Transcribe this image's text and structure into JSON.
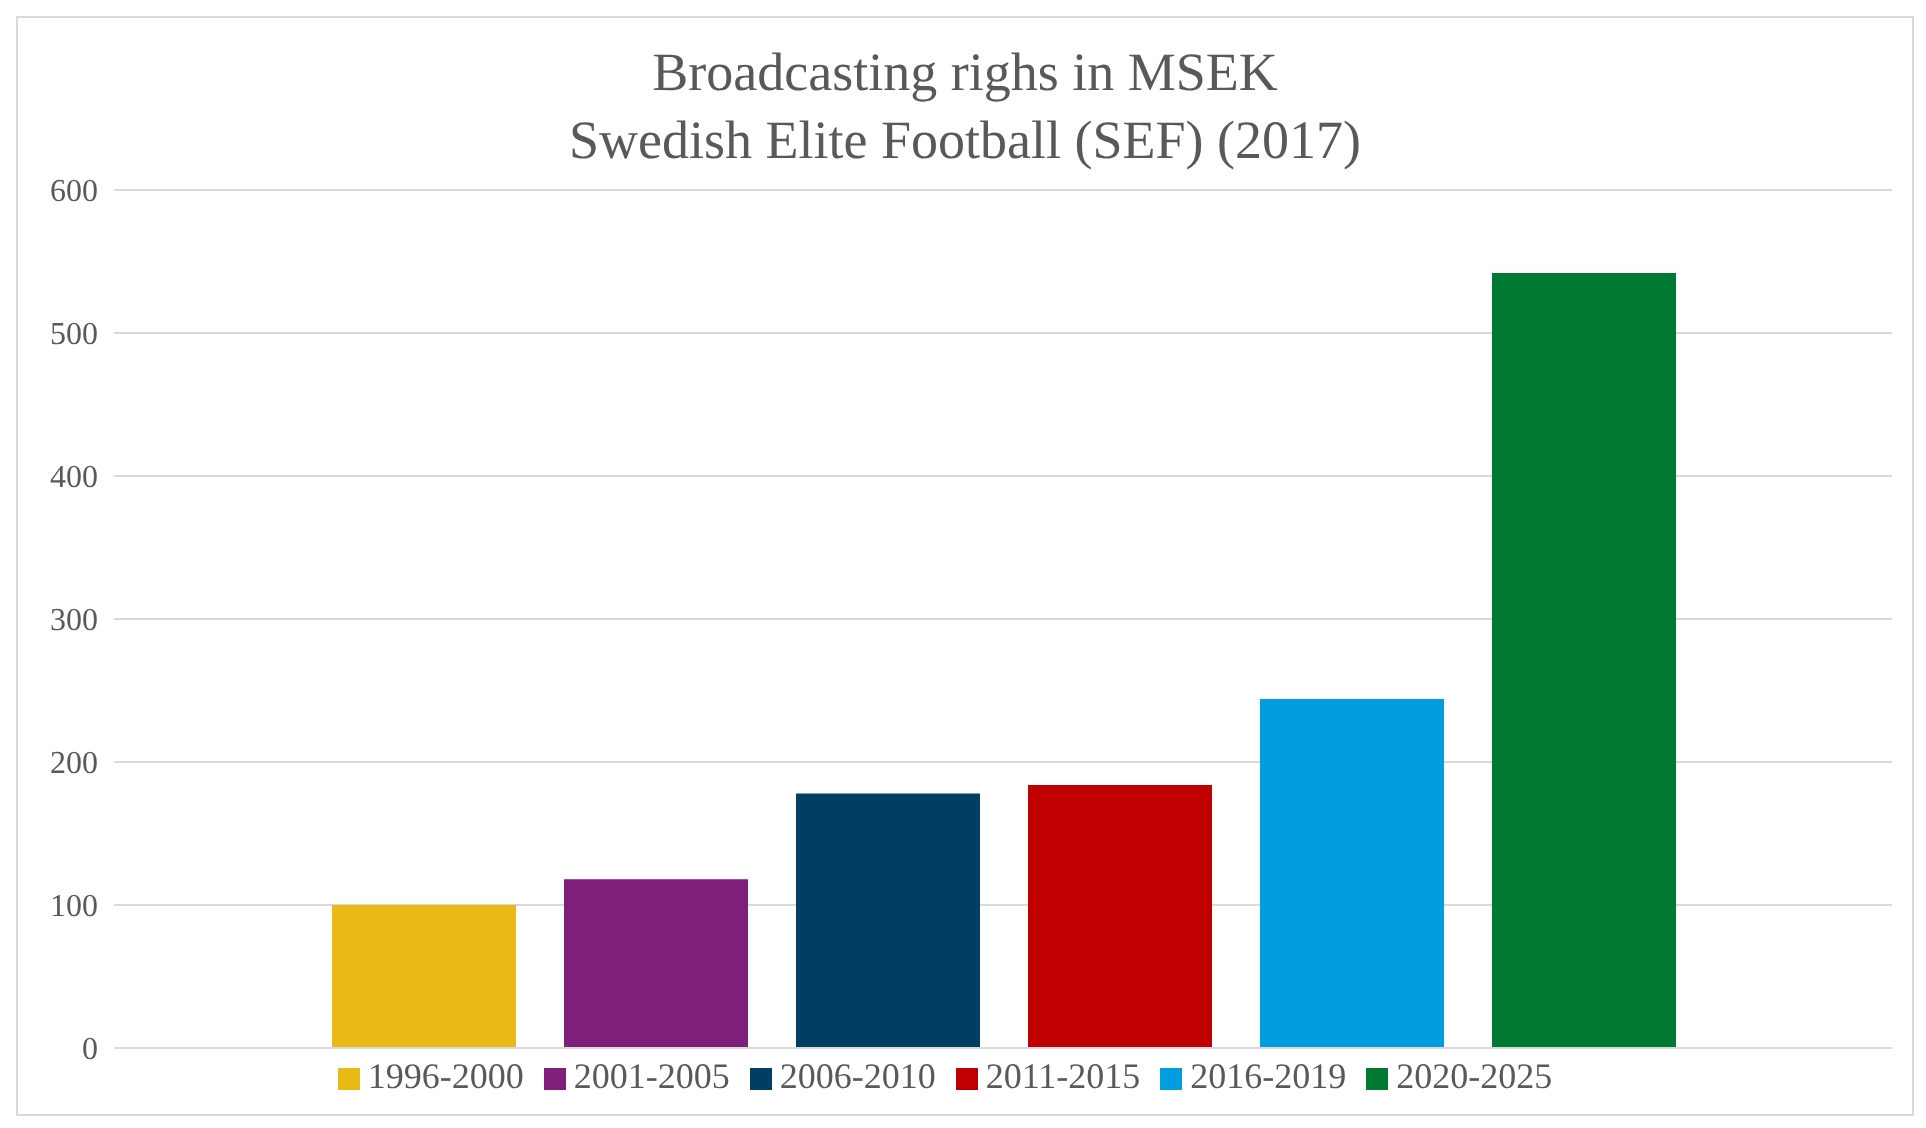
{
  "chart_data": {
    "type": "bar",
    "title": "Broadcasting righs in MSEK",
    "subtitle": "Swedish Elite Football (SEF) (2017)",
    "categories": [
      null
    ],
    "series": [
      {
        "name": "1996-2000",
        "color": "#ebb916",
        "values": [
          100
        ]
      },
      {
        "name": "2001-2005",
        "color": "#7f1f7c",
        "values": [
          118
        ]
      },
      {
        "name": "2006-2010",
        "color": "#003f63",
        "values": [
          178
        ]
      },
      {
        "name": "2011-2015",
        "color": "#c00000",
        "values": [
          184
        ]
      },
      {
        "name": "2016-2019",
        "color": "#009ddf",
        "values": [
          244
        ]
      },
      {
        "name": "2020-2025",
        "color": "#007a33",
        "values": [
          542
        ]
      }
    ],
    "ylim": [
      0,
      600
    ],
    "yticks": [
      0,
      100,
      200,
      300,
      400,
      500,
      600
    ],
    "grid": "y",
    "legend": "bottom"
  }
}
